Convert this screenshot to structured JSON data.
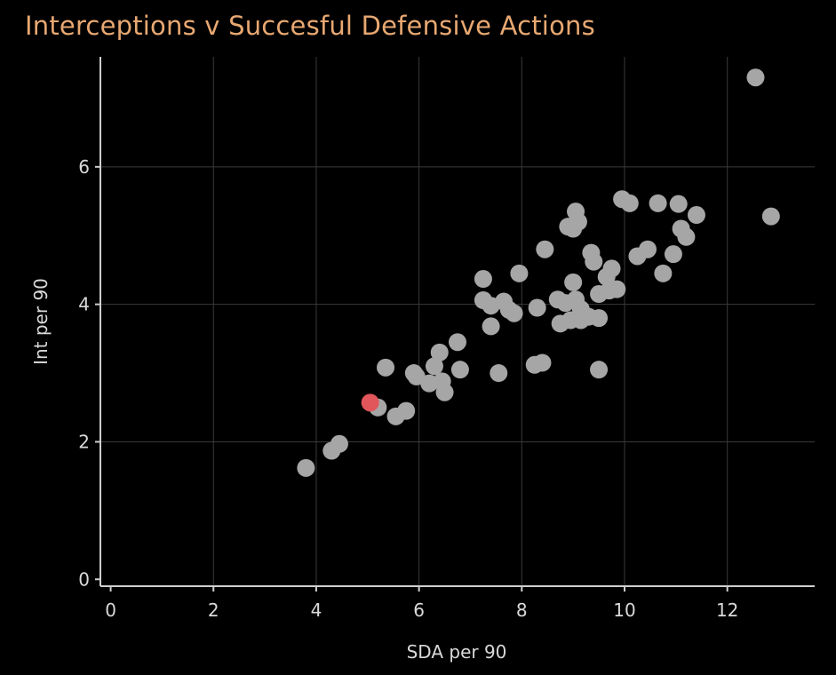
{
  "chart_data": {
    "type": "scatter",
    "title": "Interceptions v Succesful Defensive Actions",
    "xlabel": "SDA per 90",
    "ylabel": "Int per 90",
    "xlim": [
      -0.2,
      13.7
    ],
    "ylim": [
      -0.1,
      7.6
    ],
    "xticks": [
      0,
      2,
      4,
      6,
      8,
      10,
      12
    ],
    "yticks": [
      0,
      2,
      4,
      6
    ],
    "grid": true,
    "colors": {
      "background": "#000000",
      "title": "#e8a872",
      "point": "#a6a6a6",
      "highlight": "#e0565b",
      "grid": "#3a3a3a",
      "axis": "#cfcfcf",
      "text": "#d9d9d9"
    },
    "series": [
      {
        "points": [
          [
            12.55,
            7.3
          ],
          [
            12.85,
            5.28
          ],
          [
            9.95,
            5.53
          ],
          [
            10.1,
            5.47
          ],
          [
            10.65,
            5.47
          ],
          [
            11.05,
            5.46
          ],
          [
            11.4,
            5.3
          ],
          [
            11.1,
            5.1
          ],
          [
            11.2,
            4.98
          ],
          [
            9.05,
            5.35
          ],
          [
            9.1,
            5.2
          ],
          [
            8.9,
            5.13
          ],
          [
            9.0,
            5.1
          ],
          [
            8.45,
            4.8
          ],
          [
            9.35,
            4.75
          ],
          [
            9.4,
            4.62
          ],
          [
            10.25,
            4.7
          ],
          [
            10.45,
            4.8
          ],
          [
            10.95,
            4.73
          ],
          [
            9.75,
            4.52
          ],
          [
            10.75,
            4.45
          ],
          [
            9.65,
            4.4
          ],
          [
            7.95,
            4.45
          ],
          [
            7.25,
            4.37
          ],
          [
            9.0,
            4.32
          ],
          [
            9.7,
            4.2
          ],
          [
            9.5,
            4.15
          ],
          [
            9.85,
            4.22
          ],
          [
            7.25,
            4.06
          ],
          [
            7.4,
            3.98
          ],
          [
            7.65,
            4.04
          ],
          [
            7.75,
            3.92
          ],
          [
            7.85,
            3.87
          ],
          [
            8.3,
            3.95
          ],
          [
            8.7,
            4.07
          ],
          [
            8.85,
            4.02
          ],
          [
            9.05,
            4.07
          ],
          [
            9.15,
            3.93
          ],
          [
            8.75,
            3.72
          ],
          [
            8.95,
            3.77
          ],
          [
            9.15,
            3.77
          ],
          [
            9.3,
            3.82
          ],
          [
            9.5,
            3.8
          ],
          [
            7.4,
            3.68
          ],
          [
            6.75,
            3.45
          ],
          [
            6.4,
            3.3
          ],
          [
            6.3,
            3.1
          ],
          [
            6.8,
            3.05
          ],
          [
            5.35,
            3.08
          ],
          [
            5.9,
            3.0
          ],
          [
            5.95,
            2.95
          ],
          [
            6.2,
            2.85
          ],
          [
            6.45,
            2.88
          ],
          [
            6.5,
            2.72
          ],
          [
            8.25,
            3.12
          ],
          [
            8.4,
            3.15
          ],
          [
            7.55,
            3.0
          ],
          [
            9.5,
            3.05
          ],
          [
            5.2,
            2.5
          ],
          [
            5.75,
            2.45
          ],
          [
            5.55,
            2.37
          ],
          [
            4.45,
            1.97
          ],
          [
            4.3,
            1.87
          ],
          [
            3.8,
            1.62
          ]
        ]
      },
      {
        "highlight": true,
        "points": [
          [
            5.05,
            2.57
          ]
        ]
      }
    ]
  }
}
